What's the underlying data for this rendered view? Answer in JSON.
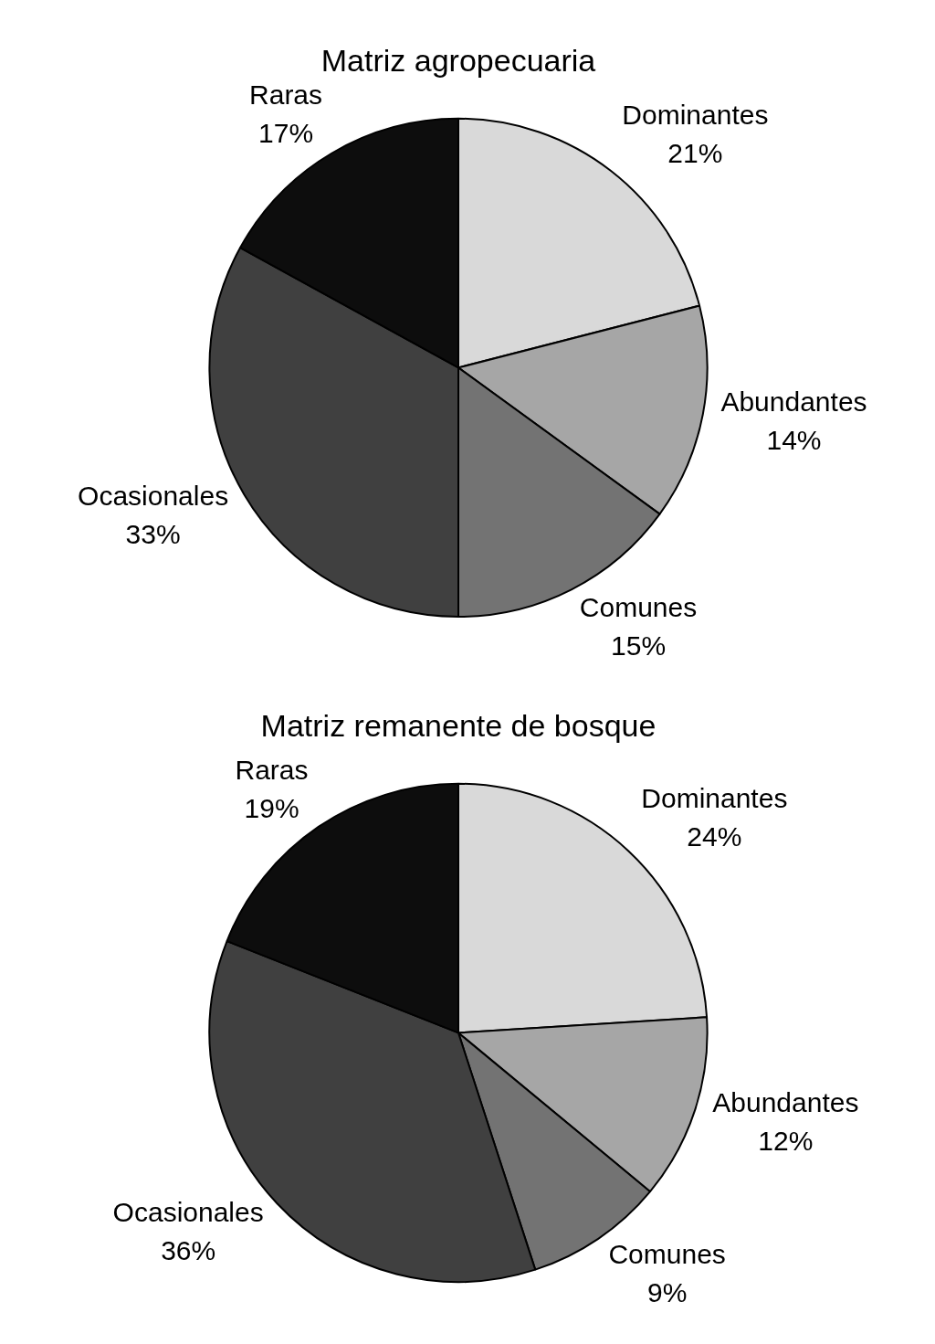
{
  "chart_data": [
    {
      "type": "pie",
      "title": "Matriz agropecuaria",
      "categories": [
        "Dominantes",
        "Abundantes",
        "Comunes",
        "Ocasionales",
        "Raras"
      ],
      "values": [
        21,
        14,
        15,
        33,
        17
      ],
      "value_labels": [
        "21%",
        "14%",
        "15%",
        "33%",
        "17%"
      ],
      "colors": [
        "#d9d9d9",
        "#a6a6a6",
        "#737373",
        "#404040",
        "#0d0d0d"
      ]
    },
    {
      "type": "pie",
      "title": "Matriz remanente de bosque",
      "categories": [
        "Dominantes",
        "Abundantes",
        "Comunes",
        "Ocasionales",
        "Raras"
      ],
      "values": [
        24,
        12,
        9,
        36,
        19
      ],
      "value_labels": [
        "24%",
        "12%",
        "9%",
        "36%",
        "19%"
      ],
      "colors": [
        "#d9d9d9",
        "#a6a6a6",
        "#737373",
        "#404040",
        "#0d0d0d"
      ]
    }
  ]
}
